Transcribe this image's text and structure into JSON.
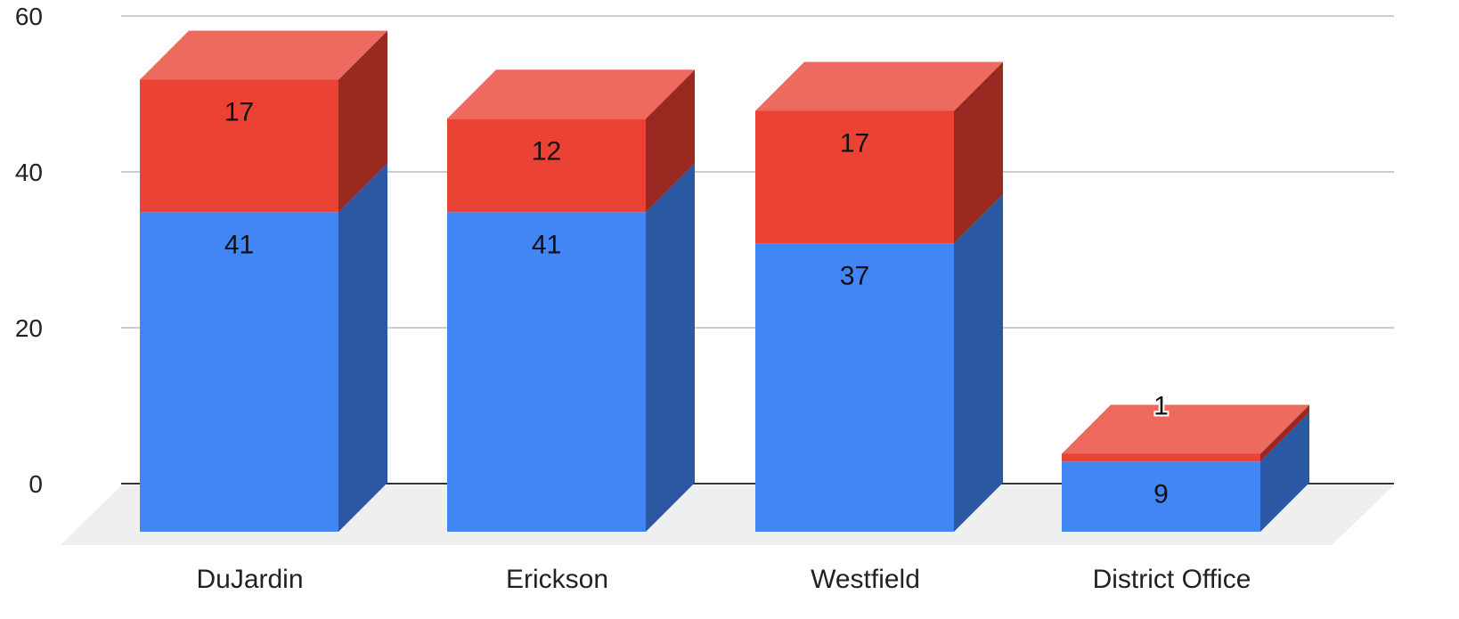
{
  "chart_data": {
    "type": "bar",
    "stacked": true,
    "three_d": true,
    "categories": [
      "DuJardin",
      "Erickson",
      "Westfield",
      "District Office"
    ],
    "series": [
      {
        "values": [
          41,
          41,
          37,
          9
        ],
        "color": "#4285f4",
        "side_color": "#2b57a3"
      },
      {
        "values": [
          17,
          12,
          17,
          1
        ],
        "color": "#ea4335",
        "side_color": "#9a2a21",
        "top_color": "#ed6a5e"
      }
    ],
    "ylim": [
      0,
      60
    ],
    "yticks": [
      0,
      20,
      40,
      60
    ],
    "grid": true,
    "legend": "none"
  }
}
